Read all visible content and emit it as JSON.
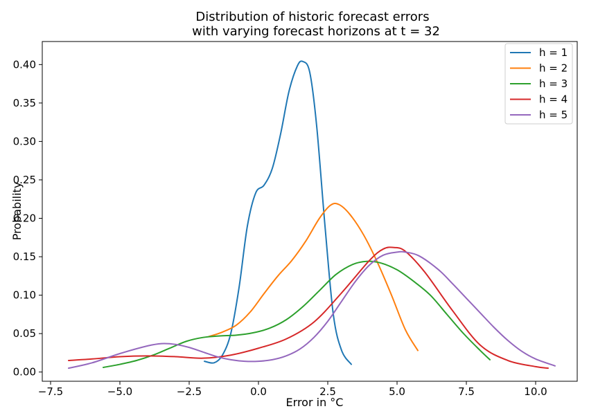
{
  "chart_data": {
    "type": "line",
    "title": [
      "Distribution of historic forecast errors",
      "with varying forecast horizons at t = 32"
    ],
    "xlabel": "Error in °C",
    "ylabel": "Probability",
    "xlim": [
      -7.8,
      11.5
    ],
    "ylim": [
      -0.012,
      0.43
    ],
    "xticks": [
      -7.5,
      -5.0,
      -2.5,
      0.0,
      2.5,
      5.0,
      7.5,
      10.0
    ],
    "xtick_labels": [
      "−7.5",
      "−5.0",
      "−2.5",
      "0.0",
      "2.5",
      "5.0",
      "7.5",
      "10.0"
    ],
    "yticks": [
      0.0,
      0.05,
      0.1,
      0.15,
      0.2,
      0.25,
      0.3,
      0.35,
      0.4
    ],
    "ytick_labels": [
      "0.00",
      "0.05",
      "0.10",
      "0.15",
      "0.20",
      "0.25",
      "0.30",
      "0.35",
      "0.40"
    ],
    "grid": false,
    "legend_position": "top-right",
    "series": [
      {
        "name": "h = 1",
        "color": "#1f77b4",
        "x": [
          -1.95,
          -1.6,
          -1.3,
          -1.0,
          -0.7,
          -0.4,
          -0.1,
          0.2,
          0.5,
          0.8,
          1.1,
          1.4,
          1.6,
          1.85,
          2.1,
          2.4,
          2.7,
          3.0,
          3.35
        ],
        "y": [
          0.014,
          0.012,
          0.022,
          0.05,
          0.11,
          0.19,
          0.233,
          0.243,
          0.265,
          0.31,
          0.365,
          0.398,
          0.404,
          0.39,
          0.32,
          0.19,
          0.075,
          0.028,
          0.01
        ]
      },
      {
        "name": "h = 2",
        "color": "#ff7f0e",
        "x": [
          -1.8,
          -1.3,
          -0.8,
          -0.3,
          0.2,
          0.7,
          1.2,
          1.7,
          2.2,
          2.6,
          2.9,
          3.3,
          3.8,
          4.3,
          4.8,
          5.3,
          5.75
        ],
        "y": [
          0.046,
          0.052,
          0.061,
          0.078,
          0.102,
          0.125,
          0.145,
          0.17,
          0.2,
          0.217,
          0.218,
          0.205,
          0.178,
          0.142,
          0.1,
          0.055,
          0.028
        ]
      },
      {
        "name": "h = 3",
        "color": "#2ca02c",
        "x": [
          -5.6,
          -5.0,
          -4.4,
          -3.8,
          -3.2,
          -2.6,
          -2.0,
          -1.4,
          -0.8,
          -0.2,
          0.4,
          1.0,
          1.6,
          2.2,
          2.8,
          3.4,
          3.9,
          4.4,
          5.0,
          5.6,
          6.2,
          6.8,
          7.4,
          8.0,
          8.35
        ],
        "y": [
          0.006,
          0.01,
          0.015,
          0.022,
          0.031,
          0.04,
          0.045,
          0.047,
          0.048,
          0.051,
          0.057,
          0.068,
          0.085,
          0.106,
          0.127,
          0.14,
          0.144,
          0.142,
          0.133,
          0.118,
          0.1,
          0.075,
          0.05,
          0.028,
          0.016
        ]
      },
      {
        "name": "h = 4",
        "color": "#d62728",
        "x": [
          -6.85,
          -6.0,
          -5.0,
          -4.0,
          -3.0,
          -2.0,
          -1.0,
          0.0,
          1.0,
          2.0,
          3.0,
          4.0,
          4.5,
          4.9,
          5.3,
          6.0,
          7.0,
          8.0,
          9.0,
          10.0,
          10.45
        ],
        "y": [
          0.015,
          0.017,
          0.02,
          0.021,
          0.02,
          0.018,
          0.022,
          0.031,
          0.043,
          0.065,
          0.103,
          0.145,
          0.16,
          0.162,
          0.157,
          0.13,
          0.08,
          0.035,
          0.015,
          0.007,
          0.005
        ]
      },
      {
        "name": "h = 5",
        "color": "#9467bd",
        "x": [
          -6.85,
          -6.0,
          -5.0,
          -4.0,
          -3.5,
          -3.0,
          -2.5,
          -2.0,
          -1.5,
          -1.0,
          -0.5,
          0.0,
          0.5,
          1.0,
          1.5,
          2.0,
          2.5,
          3.0,
          3.5,
          4.0,
          4.5,
          5.0,
          5.3,
          5.8,
          6.5,
          7.0,
          7.5,
          8.0,
          8.5,
          9.0,
          9.5,
          10.0,
          10.7
        ],
        "y": [
          0.005,
          0.012,
          0.024,
          0.034,
          0.037,
          0.036,
          0.032,
          0.026,
          0.02,
          0.016,
          0.014,
          0.014,
          0.016,
          0.021,
          0.03,
          0.045,
          0.066,
          0.092,
          0.118,
          0.139,
          0.152,
          0.156,
          0.156,
          0.151,
          0.133,
          0.115,
          0.096,
          0.077,
          0.058,
          0.041,
          0.027,
          0.017,
          0.008
        ]
      }
    ]
  }
}
